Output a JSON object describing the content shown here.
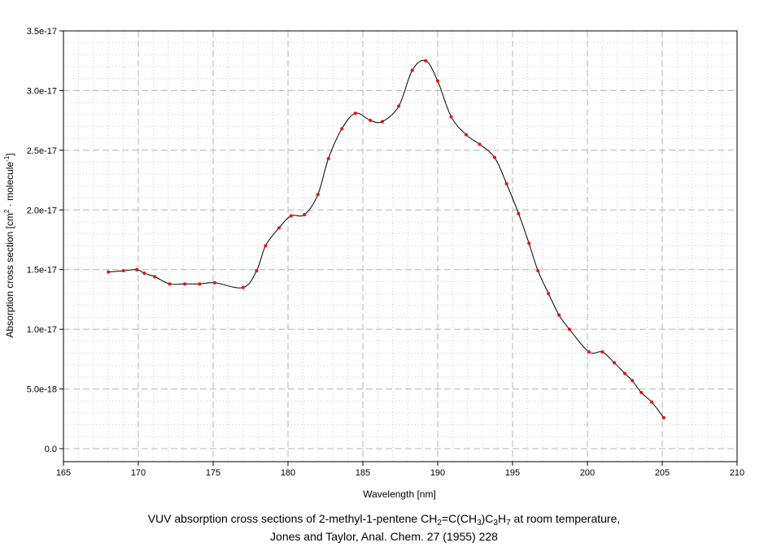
{
  "chart_data": {
    "type": "line",
    "xlabel": "Wavelength [nm]",
    "ylabel": {
      "prefix": "Absorption cross section [cm",
      "sup1": "2",
      "middle": " · molecule",
      "sup2": "-1",
      "suffix": "]"
    },
    "xlim": [
      165,
      210
    ],
    "ylim": [
      0,
      3.5e-17
    ],
    "x_ticks": [
      165,
      170,
      175,
      180,
      185,
      190,
      195,
      200,
      205,
      210
    ],
    "y_ticks": [
      0,
      5e-18,
      1e-17,
      1.5e-17,
      2e-17,
      2.5e-17,
      3e-17,
      3.5e-17
    ],
    "x_tick_labels": [
      "165",
      "170",
      "175",
      "180",
      "185",
      "190",
      "195",
      "200",
      "205",
      "210"
    ],
    "y_tick_labels": [
      "0.0",
      "5.0e-18",
      "1.0e-17",
      "1.5e-17",
      "2.0e-17",
      "2.5e-17",
      "3.0e-17",
      "3.5e-17"
    ],
    "grid": true,
    "series_color": "#000000",
    "marker_color": "#ff0000",
    "x": [
      168.0,
      169.0,
      169.9,
      170.4,
      171.1,
      172.1,
      173.1,
      174.1,
      175.1,
      177.0,
      177.9,
      178.5,
      179.4,
      180.2,
      181.1,
      182.0,
      182.7,
      183.6,
      184.5,
      185.5,
      186.3,
      187.4,
      188.3,
      189.2,
      190.0,
      190.9,
      191.9,
      192.8,
      193.8,
      194.6,
      195.4,
      196.1,
      196.7,
      197.4,
      198.1,
      198.8,
      200.1,
      201.0,
      201.8,
      202.5,
      203.0,
      203.6,
      204.3,
      205.1
    ],
    "y": [
      1.48e-17,
      1.49e-17,
      1.5e-17,
      1.47e-17,
      1.44e-17,
      1.38e-17,
      1.38e-17,
      1.38e-17,
      1.39e-17,
      1.35e-17,
      1.49e-17,
      1.7e-17,
      1.85e-17,
      1.95e-17,
      1.96e-17,
      2.13e-17,
      2.43e-17,
      2.68e-17,
      2.81e-17,
      2.75e-17,
      2.74e-17,
      2.87e-17,
      3.17e-17,
      3.25e-17,
      3.08e-17,
      2.78e-17,
      2.63e-17,
      2.55e-17,
      2.44e-17,
      2.22e-17,
      1.97e-17,
      1.72e-17,
      1.49e-17,
      1.3e-17,
      1.12e-17,
      1e-17,
      8.1e-18,
      8.1e-18,
      7.2e-18,
      6.3e-18,
      5.7e-18,
      4.7e-18,
      3.9e-18,
      2.6e-18
    ]
  },
  "caption": {
    "line1_a": "VUV absorption cross sections of 2-methyl-1-pentene CH",
    "line1_sub1": "2",
    "line1_b": "=C(CH",
    "line1_sub2": "3",
    "line1_c": ")C",
    "line1_sub3": "3",
    "line1_d": "H",
    "line1_sub4": "7",
    "line1_e": " at room temperature,",
    "line2": "Jones and Taylor, Anal. Chem. 27 (1955) 228"
  }
}
